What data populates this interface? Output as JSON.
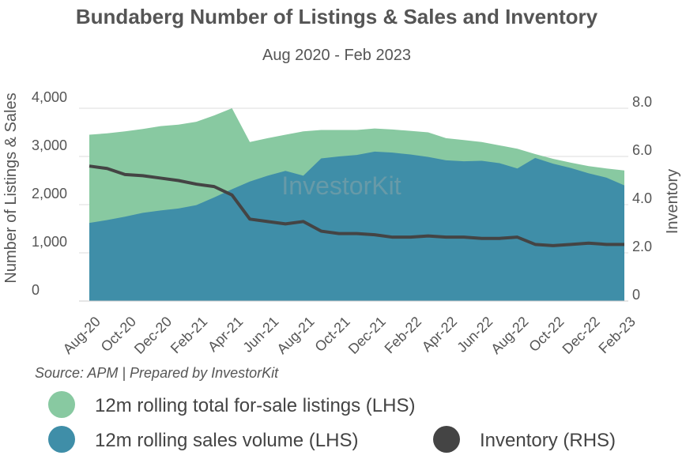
{
  "chart_data": {
    "type": "area-line",
    "title": "Bundaberg Number of Listings & Sales and Inventory",
    "subtitle": "Aug 2020 - Feb 2023",
    "y_label": "Number of Listings & Sales",
    "y2_label": "Inventory",
    "source": "Source: APM | Prepared by InvestorKit",
    "watermark": "InvestorKit",
    "categories": [
      "Aug-20",
      null,
      "Oct-20",
      null,
      "Dec-20",
      null,
      "Feb-21",
      null,
      "Apr-21",
      null,
      "Jun-21",
      null,
      "Aug-21",
      null,
      "Oct-21",
      null,
      "Dec-21",
      null,
      "Feb-22",
      null,
      "Apr-22",
      null,
      "Jun-22",
      null,
      "Aug-22",
      null,
      "Oct-22",
      null,
      "Dec-22",
      null,
      "Feb-23"
    ],
    "ylim": [
      0,
      4000
    ],
    "yticks": [
      0,
      {
        "value": 1000,
        "label": "1,000"
      },
      {
        "value": 2000,
        "label": "2,000"
      },
      {
        "value": 3000,
        "label": "3,000"
      },
      {
        "value": 4000,
        "label": "4,000"
      }
    ],
    "y2lim": [
      0,
      8
    ],
    "y2ticks": [
      0,
      {
        "value": 2,
        "label": "2.0"
      },
      {
        "value": 4,
        "label": "4.0"
      },
      {
        "value": 6,
        "label": "6.0"
      },
      {
        "value": 8,
        "label": "8.0"
      }
    ],
    "grid": true,
    "series": [
      {
        "name": "12m rolling total for-sale listings (LHS)",
        "color": "#88c9a1",
        "kind": "area",
        "values": [
          3450,
          3480,
          3520,
          3570,
          3630,
          3660,
          3720,
          3850,
          4000,
          3300,
          3380,
          3450,
          3520,
          3550,
          3550,
          3550,
          3580,
          3560,
          3530,
          3500,
          3380,
          3340,
          3300,
          3230,
          3160,
          3050,
          2950,
          2870,
          2800,
          2750,
          2710
        ]
      },
      {
        "name": "12m rolling sales volume (LHS)",
        "color": "#3f8ea8",
        "kind": "area",
        "values": [
          1620,
          1680,
          1750,
          1830,
          1880,
          1920,
          1990,
          2150,
          2320,
          2480,
          2600,
          2700,
          2600,
          2960,
          3000,
          3030,
          3100,
          3080,
          3040,
          2990,
          2920,
          2900,
          2910,
          2860,
          2750,
          2970,
          2850,
          2760,
          2650,
          2560,
          2400
        ]
      },
      {
        "name": "Inventory (RHS)",
        "color": "#444444",
        "kind": "line",
        "axis": "y2",
        "values": [
          5.6,
          5.5,
          5.25,
          5.2,
          5.1,
          5.0,
          4.85,
          4.75,
          4.4,
          3.4,
          3.3,
          3.2,
          3.3,
          2.9,
          2.8,
          2.8,
          2.75,
          2.65,
          2.65,
          2.7,
          2.65,
          2.65,
          2.6,
          2.6,
          2.65,
          2.35,
          2.3,
          2.35,
          2.4,
          2.35,
          2.35
        ]
      }
    ]
  }
}
